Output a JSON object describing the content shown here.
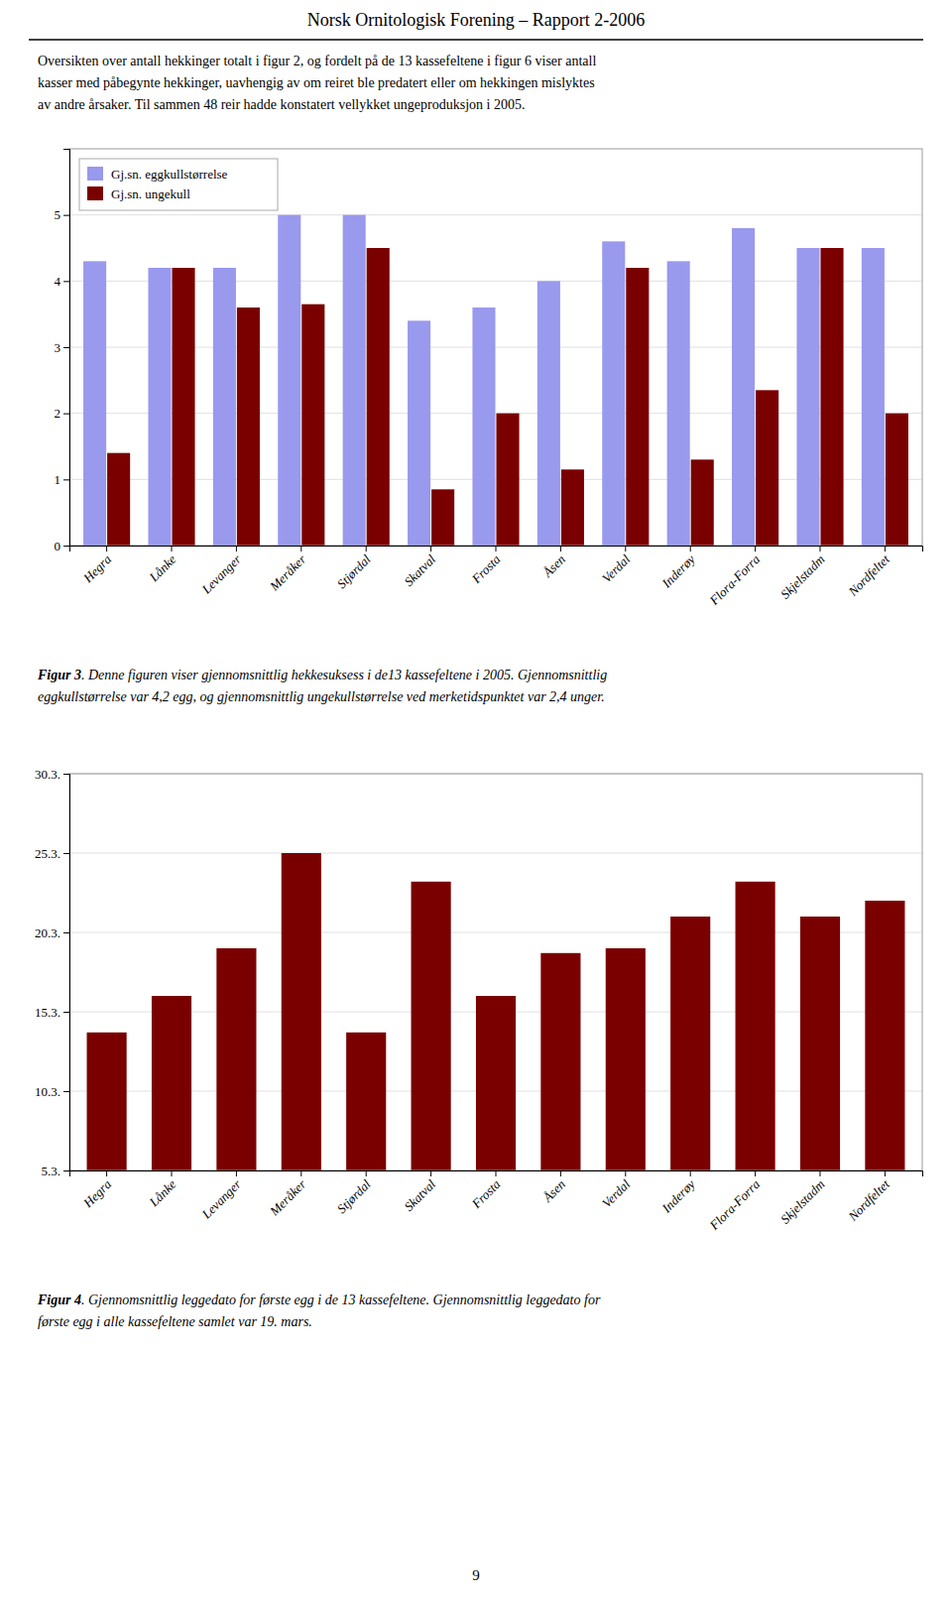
{
  "page_title": "Norsk Ornitologisk Forening – Rapport 2-2006",
  "body_text": [
    "Oversikten over antall hekkinger totalt i figur 2, og fordelt på de 13 kassefeltene i figur 6 viser antall",
    "kasser med påbegynte hekkinger, uavhengig av om reiret ble predatert eller om hekkingen mislyktes",
    "av andre årsaker. Til sammen 48 reir hadde konstatert vellykket ungeproduksjon i 2005."
  ],
  "page_number": "9",
  "chart_data": [
    {
      "type": "bar",
      "categories": [
        "Hegra",
        "Lånke",
        "Levanger",
        "Meråker",
        "Stjørdal",
        "Skatval",
        "Frosta",
        "Åsen",
        "Verdal",
        "Inderøy",
        "Flora-Forra",
        "Skjelstadm",
        "Nordfeltet"
      ],
      "series": [
        {
          "name": "Gj.sn. eggkullstørrelse",
          "color": "#9999ee",
          "values": [
            4.3,
            4.2,
            4.2,
            5.0,
            5.0,
            3.4,
            3.6,
            4.0,
            4.6,
            4.3,
            4.8,
            4.5,
            4.5
          ]
        },
        {
          "name": "Gj.sn. ungekull",
          "color": "#7a0000",
          "values": [
            1.4,
            4.2,
            3.6,
            3.65,
            4.5,
            0.85,
            2.0,
            1.15,
            4.2,
            1.3,
            2.35,
            4.5,
            2.0
          ]
        }
      ],
      "ylim": [
        0,
        6
      ],
      "yticks": [
        0,
        1,
        2,
        3,
        4,
        5
      ],
      "grid": true,
      "legend": "upper left",
      "caption_label": "Figur 3",
      "caption_lines": [
        ". Denne figuren viser gjennomsnittlig hekkesuksess i de13 kassefeltene i 2005. Gjennomsnittlig",
        "eggkullstørrelse var 4,2 egg, og gjennomsnittlig ungekullstørrelse ved merketidspunktet var 2,4 unger."
      ]
    },
    {
      "type": "bar",
      "categories": [
        "Hegra",
        "Lånke",
        "Levanger",
        "Meråker",
        "Stjørdal",
        "Skatval",
        "Frosta",
        "Åsen",
        "Verdal",
        "Inderøy",
        "Flora-Forra",
        "Skjelstadm",
        "Nordfeltet"
      ],
      "values": [
        14.0,
        16.3,
        19.3,
        25.3,
        14.0,
        23.5,
        16.3,
        19.0,
        19.3,
        21.3,
        23.5,
        21.3,
        22.3
      ],
      "color": "#7a0000",
      "ylim": [
        5.3,
        30.3
      ],
      "yticks": [
        {
          "value": 5.3,
          "label": "5.3."
        },
        {
          "value": 10.3,
          "label": "10.3."
        },
        {
          "value": 15.3,
          "label": "15.3."
        },
        {
          "value": 20.3,
          "label": "20.3."
        },
        {
          "value": 25.3,
          "label": "25.3."
        },
        {
          "value": 30.3,
          "label": "30.3."
        }
      ],
      "grid": true,
      "caption_label": "Figur 4",
      "caption_lines": [
        ". Gjennomsnittlig leggedato for første egg i de 13 kassefeltene. Gjennomsnittlig leggedato for",
        "første egg i alle kassefeltene samlet var 19. mars."
      ]
    }
  ]
}
